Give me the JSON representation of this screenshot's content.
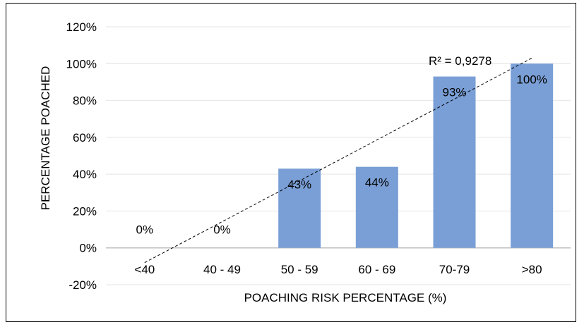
{
  "chart_data": {
    "type": "bar",
    "categories": [
      "<40",
      "40 - 49",
      "50 - 59",
      "60 - 69",
      "70-79",
      ">80"
    ],
    "values": [
      0,
      0,
      43,
      44,
      93,
      100
    ],
    "data_labels": [
      "0%",
      "0%",
      "43%",
      "44%",
      "93%",
      "100%"
    ],
    "xlabel": "POACHING RISK PERCENTAGE (%)",
    "ylabel": "PERCENTAGE POACHED",
    "ylim": [
      -20,
      120
    ],
    "yticks": [
      -20,
      0,
      20,
      40,
      60,
      80,
      100,
      120
    ],
    "ytick_labels": [
      "-20%",
      "0%",
      "20%",
      "40%",
      "60%",
      "80%",
      "100%",
      "120%"
    ],
    "grid": true,
    "legend": "none",
    "trendline": {
      "type": "linear",
      "style": "dashed",
      "label": "R² = 0,9278",
      "start_value": -8,
      "end_value": 103
    },
    "colors": {
      "bar": "#7a9fd6",
      "grid": "#e4e4e4",
      "axis": "#bfbfbf",
      "text": "#000000"
    }
  }
}
